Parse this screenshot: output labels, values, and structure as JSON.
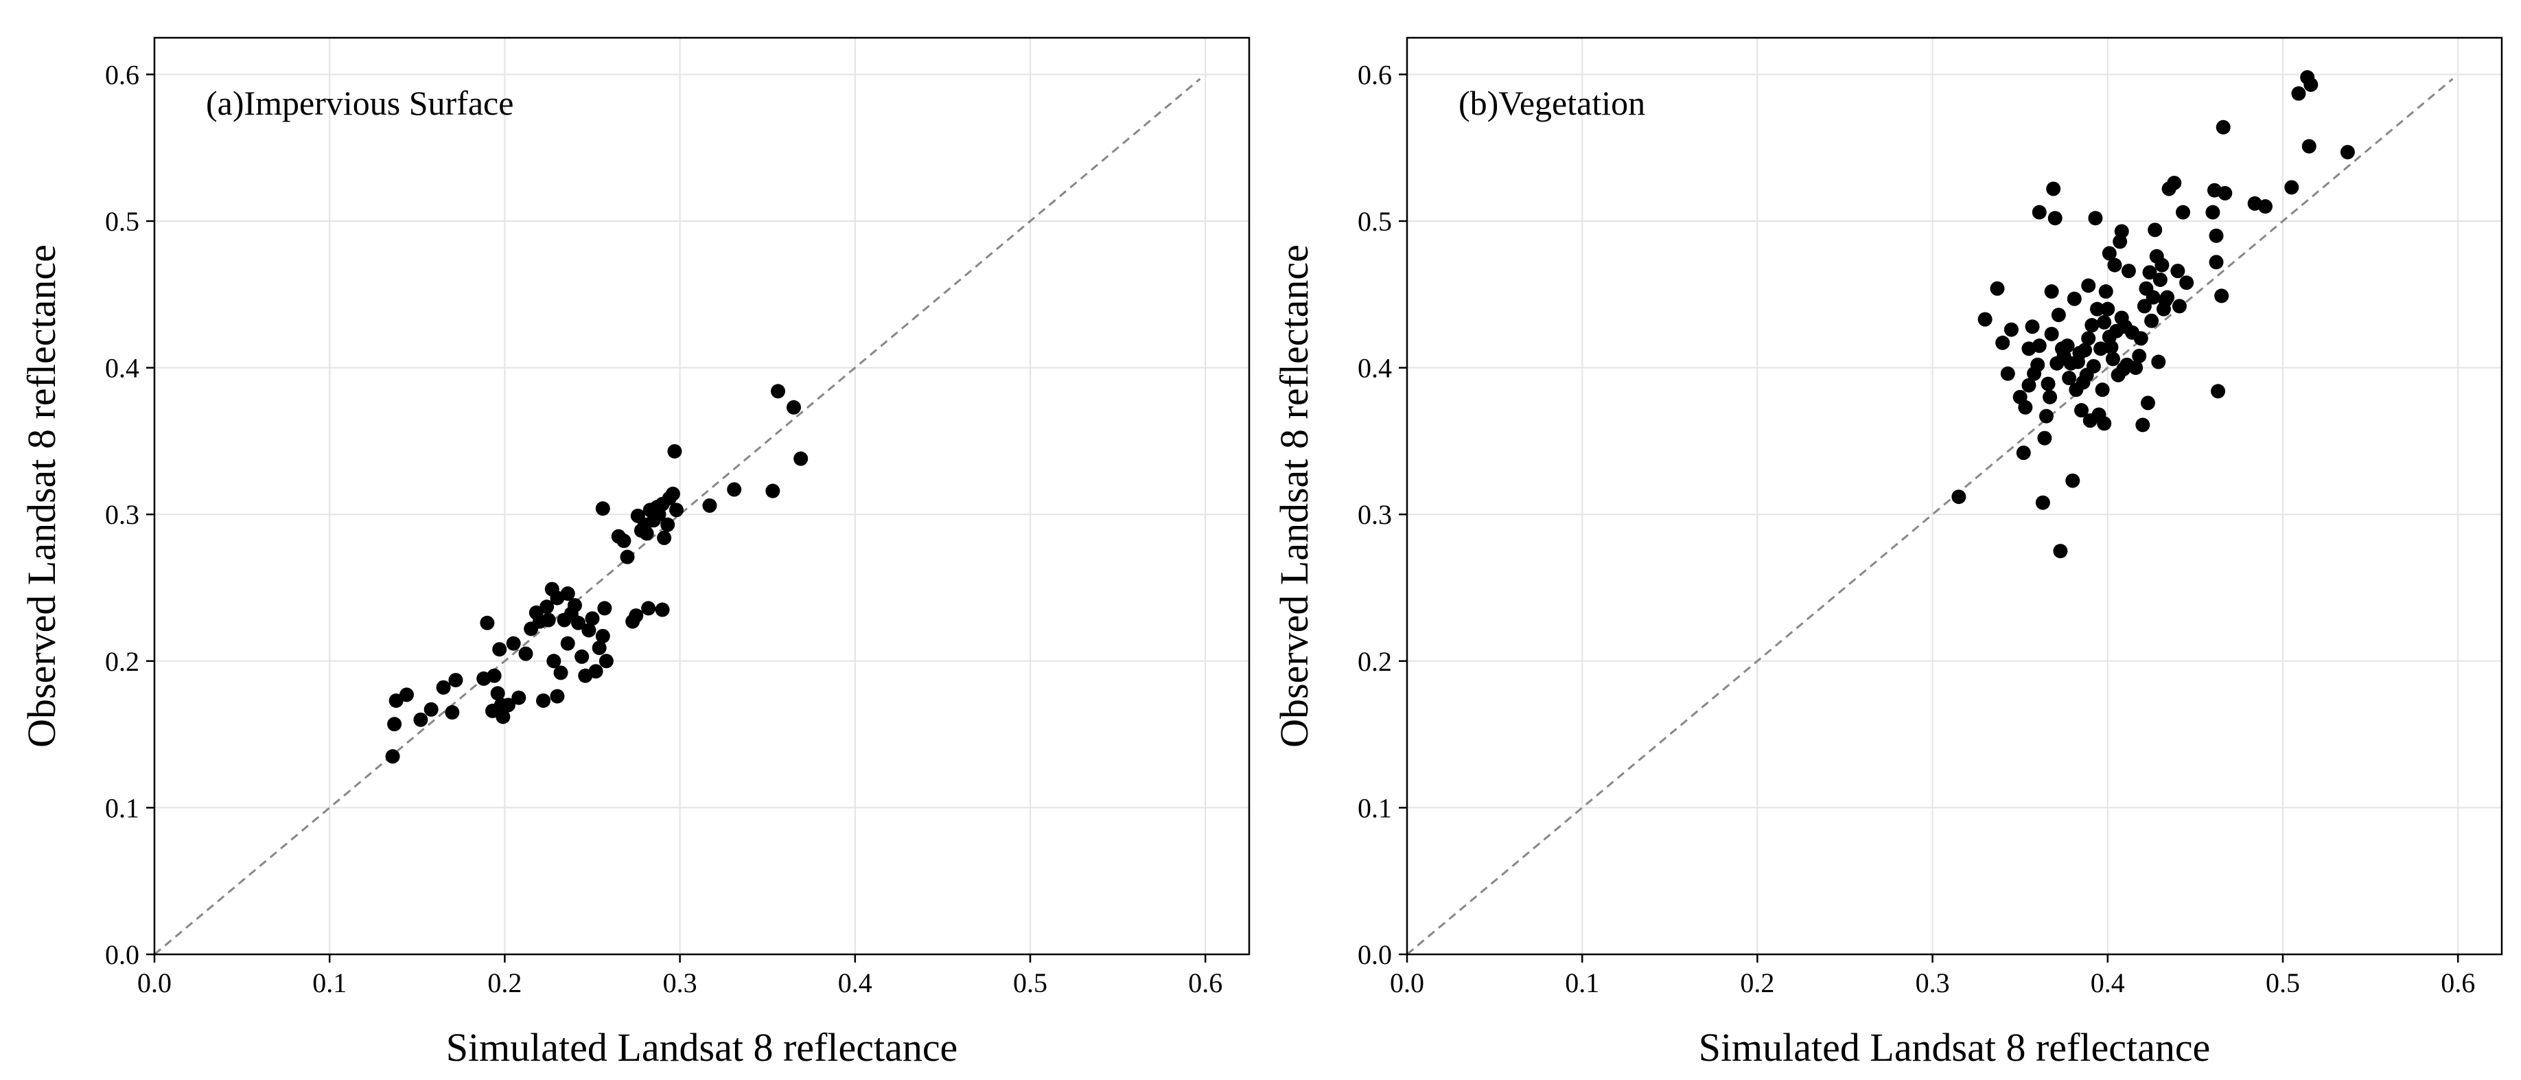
{
  "chart_data": [
    {
      "type": "scatter",
      "title": "(a)Impervious Surface",
      "xlabel": "Simulated Landsat 8 reflectance",
      "ylabel": "Observed Landsat 8 reflectance",
      "xlim": [
        0,
        0.625
      ],
      "ylim": [
        0,
        0.625
      ],
      "xticks": [
        "0.0",
        "0.1",
        "0.2",
        "0.3",
        "0.4",
        "0.5",
        "0.6"
      ],
      "yticks": [
        "0.0",
        "0.1",
        "0.2",
        "0.3",
        "0.4",
        "0.5",
        "0.6"
      ],
      "grid": true,
      "reference_line": {
        "style": "dashed",
        "color": "#888888",
        "from": [
          0,
          0
        ],
        "to": [
          0.597,
          0.597
        ]
      },
      "point_color": "#000000",
      "points": [
        [
          0.136,
          0.135
        ],
        [
          0.137,
          0.157
        ],
        [
          0.138,
          0.173
        ],
        [
          0.144,
          0.177
        ],
        [
          0.152,
          0.16
        ],
        [
          0.158,
          0.167
        ],
        [
          0.165,
          0.182
        ],
        [
          0.17,
          0.165
        ],
        [
          0.172,
          0.187
        ],
        [
          0.188,
          0.188
        ],
        [
          0.19,
          0.226
        ],
        [
          0.193,
          0.166
        ],
        [
          0.194,
          0.19
        ],
        [
          0.196,
          0.178
        ],
        [
          0.198,
          0.17
        ],
        [
          0.197,
          0.208
        ],
        [
          0.199,
          0.162
        ],
        [
          0.202,
          0.17
        ],
        [
          0.205,
          0.212
        ],
        [
          0.208,
          0.175
        ],
        [
          0.212,
          0.205
        ],
        [
          0.215,
          0.222
        ],
        [
          0.218,
          0.233
        ],
        [
          0.22,
          0.227
        ],
        [
          0.222,
          0.173
        ],
        [
          0.224,
          0.237
        ],
        [
          0.225,
          0.228
        ],
        [
          0.227,
          0.249
        ],
        [
          0.228,
          0.2
        ],
        [
          0.23,
          0.176
        ],
        [
          0.23,
          0.243
        ],
        [
          0.232,
          0.192
        ],
        [
          0.234,
          0.228
        ],
        [
          0.236,
          0.246
        ],
        [
          0.236,
          0.212
        ],
        [
          0.238,
          0.232
        ],
        [
          0.24,
          0.238
        ],
        [
          0.242,
          0.226
        ],
        [
          0.244,
          0.203
        ],
        [
          0.246,
          0.19
        ],
        [
          0.248,
          0.221
        ],
        [
          0.25,
          0.229
        ],
        [
          0.252,
          0.193
        ],
        [
          0.254,
          0.209
        ],
        [
          0.256,
          0.217
        ],
        [
          0.257,
          0.236
        ],
        [
          0.258,
          0.2
        ],
        [
          0.256,
          0.304
        ],
        [
          0.265,
          0.285
        ],
        [
          0.268,
          0.282
        ],
        [
          0.27,
          0.271
        ],
        [
          0.273,
          0.227
        ],
        [
          0.275,
          0.231
        ],
        [
          0.276,
          0.299
        ],
        [
          0.278,
          0.289
        ],
        [
          0.28,
          0.293
        ],
        [
          0.281,
          0.287
        ],
        [
          0.282,
          0.236
        ],
        [
          0.283,
          0.303
        ],
        [
          0.285,
          0.296
        ],
        [
          0.287,
          0.305
        ],
        [
          0.288,
          0.3
        ],
        [
          0.29,
          0.235
        ],
        [
          0.29,
          0.307
        ],
        [
          0.291,
          0.284
        ],
        [
          0.293,
          0.293
        ],
        [
          0.294,
          0.311
        ],
        [
          0.296,
          0.314
        ],
        [
          0.297,
          0.343
        ],
        [
          0.298,
          0.303
        ],
        [
          0.317,
          0.306
        ],
        [
          0.331,
          0.317
        ],
        [
          0.353,
          0.316
        ],
        [
          0.356,
          0.384
        ],
        [
          0.365,
          0.373
        ],
        [
          0.369,
          0.338
        ]
      ]
    },
    {
      "type": "scatter",
      "title": "(b)Vegetation",
      "xlabel": "Simulated Landsat 8 reflectance",
      "ylabel": "Observed Landsat 8 reflectance",
      "xlim": [
        0,
        0.625
      ],
      "ylim": [
        0,
        0.625
      ],
      "xticks": [
        "0.0",
        "0.1",
        "0.2",
        "0.3",
        "0.4",
        "0.5",
        "0.6"
      ],
      "yticks": [
        "0.0",
        "0.1",
        "0.2",
        "0.3",
        "0.4",
        "0.5",
        "0.6"
      ],
      "grid": true,
      "reference_line": {
        "style": "dashed",
        "color": "#888888",
        "from": [
          0,
          0
        ],
        "to": [
          0.597,
          0.597
        ]
      },
      "point_color": "#000000",
      "points": [
        [
          0.315,
          0.312
        ],
        [
          0.33,
          0.433
        ],
        [
          0.337,
          0.454
        ],
        [
          0.34,
          0.417
        ],
        [
          0.343,
          0.396
        ],
        [
          0.345,
          0.426
        ],
        [
          0.35,
          0.38
        ],
        [
          0.352,
          0.342
        ],
        [
          0.353,
          0.373
        ],
        [
          0.355,
          0.388
        ],
        [
          0.355,
          0.413
        ],
        [
          0.357,
          0.428
        ],
        [
          0.358,
          0.396
        ],
        [
          0.36,
          0.402
        ],
        [
          0.361,
          0.415
        ],
        [
          0.361,
          0.506
        ],
        [
          0.363,
          0.308
        ],
        [
          0.364,
          0.352
        ],
        [
          0.365,
          0.367
        ],
        [
          0.366,
          0.389
        ],
        [
          0.367,
          0.38
        ],
        [
          0.368,
          0.423
        ],
        [
          0.368,
          0.452
        ],
        [
          0.369,
          0.522
        ],
        [
          0.37,
          0.502
        ],
        [
          0.371,
          0.403
        ],
        [
          0.372,
          0.436
        ],
        [
          0.373,
          0.275
        ],
        [
          0.374,
          0.413
        ],
        [
          0.375,
          0.408
        ],
        [
          0.377,
          0.415
        ],
        [
          0.378,
          0.393
        ],
        [
          0.379,
          0.403
        ],
        [
          0.38,
          0.323
        ],
        [
          0.381,
          0.447
        ],
        [
          0.382,
          0.385
        ],
        [
          0.383,
          0.404
        ],
        [
          0.384,
          0.41
        ],
        [
          0.385,
          0.371
        ],
        [
          0.386,
          0.39
        ],
        [
          0.387,
          0.412
        ],
        [
          0.388,
          0.395
        ],
        [
          0.389,
          0.42
        ],
        [
          0.389,
          0.456
        ],
        [
          0.39,
          0.364
        ],
        [
          0.391,
          0.429
        ],
        [
          0.392,
          0.401
        ],
        [
          0.393,
          0.502
        ],
        [
          0.394,
          0.44
        ],
        [
          0.395,
          0.368
        ],
        [
          0.396,
          0.413
        ],
        [
          0.397,
          0.385
        ],
        [
          0.398,
          0.431
        ],
        [
          0.398,
          0.362
        ],
        [
          0.399,
          0.452
        ],
        [
          0.4,
          0.44
        ],
        [
          0.401,
          0.421
        ],
        [
          0.401,
          0.478
        ],
        [
          0.402,
          0.414
        ],
        [
          0.403,
          0.406
        ],
        [
          0.404,
          0.47
        ],
        [
          0.405,
          0.425
        ],
        [
          0.406,
          0.395
        ],
        [
          0.407,
          0.486
        ],
        [
          0.408,
          0.434
        ],
        [
          0.408,
          0.493
        ],
        [
          0.409,
          0.399
        ],
        [
          0.41,
          0.428
        ],
        [
          0.411,
          0.402
        ],
        [
          0.412,
          0.466
        ],
        [
          0.414,
          0.424
        ],
        [
          0.416,
          0.4
        ],
        [
          0.418,
          0.408
        ],
        [
          0.419,
          0.42
        ],
        [
          0.42,
          0.361
        ],
        [
          0.421,
          0.442
        ],
        [
          0.422,
          0.454
        ],
        [
          0.423,
          0.376
        ],
        [
          0.424,
          0.465
        ],
        [
          0.425,
          0.432
        ],
        [
          0.426,
          0.448
        ],
        [
          0.427,
          0.494
        ],
        [
          0.428,
          0.476
        ],
        [
          0.429,
          0.404
        ],
        [
          0.43,
          0.46
        ],
        [
          0.431,
          0.47
        ],
        [
          0.432,
          0.44
        ],
        [
          0.433,
          0.446
        ],
        [
          0.434,
          0.448
        ],
        [
          0.435,
          0.522
        ],
        [
          0.438,
          0.526
        ],
        [
          0.44,
          0.466
        ],
        [
          0.441,
          0.442
        ],
        [
          0.443,
          0.506
        ],
        [
          0.445,
          0.458
        ],
        [
          0.46,
          0.506
        ],
        [
          0.461,
          0.521
        ],
        [
          0.462,
          0.472
        ],
        [
          0.462,
          0.49
        ],
        [
          0.463,
          0.384
        ],
        [
          0.465,
          0.449
        ],
        [
          0.466,
          0.564
        ],
        [
          0.467,
          0.519
        ],
        [
          0.484,
          0.512
        ],
        [
          0.49,
          0.51
        ],
        [
          0.505,
          0.523
        ],
        [
          0.509,
          0.587
        ],
        [
          0.514,
          0.598
        ],
        [
          0.515,
          0.551
        ],
        [
          0.516,
          0.593
        ],
        [
          0.537,
          0.547
        ]
      ]
    }
  ]
}
